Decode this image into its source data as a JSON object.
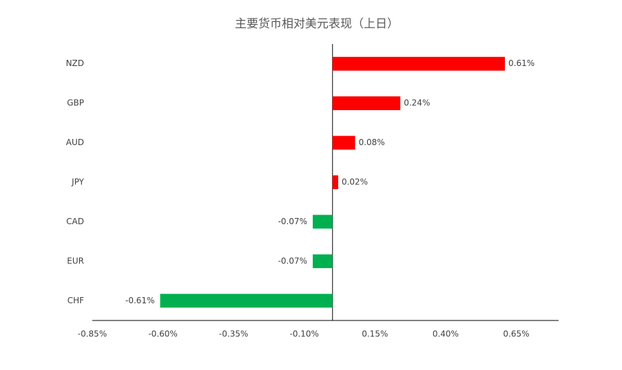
{
  "chart_data": {
    "type": "barh",
    "title": "主要货币相对美元表现（上日）",
    "categories": [
      "NZD",
      "GBP",
      "AUD",
      "JPY",
      "CAD",
      "EUR",
      "CHF"
    ],
    "values": [
      0.61,
      0.24,
      0.08,
      0.02,
      -0.07,
      -0.07,
      -0.61
    ],
    "value_labels": [
      "0.61%",
      "0.24%",
      "0.08%",
      "0.02%",
      "-0.07%",
      "-0.07%",
      "-0.61%"
    ],
    "colors": [
      "#ff0000",
      "#ff0000",
      "#ff0000",
      "#ff0000",
      "#00b050",
      "#00b050",
      "#00b050"
    ],
    "xlim": [
      -0.85,
      0.8
    ],
    "xticks": [
      {
        "value": -0.85,
        "label": "-0.85%"
      },
      {
        "value": -0.6,
        "label": "-0.60%"
      },
      {
        "value": -0.35,
        "label": "-0.35%"
      },
      {
        "value": -0.1,
        "label": "-0.10%"
      },
      {
        "value": 0.15,
        "label": "0.15%"
      },
      {
        "value": 0.4,
        "label": "0.40%"
      },
      {
        "value": 0.65,
        "label": "0.65%"
      }
    ]
  }
}
